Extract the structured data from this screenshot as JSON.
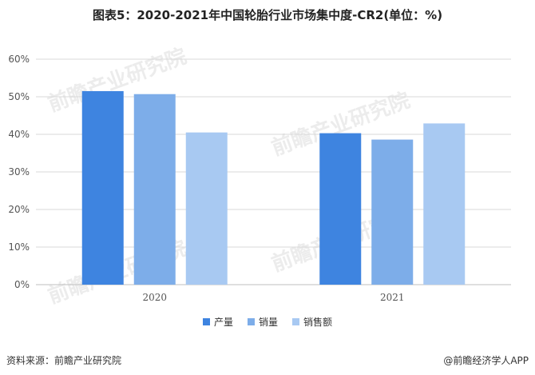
{
  "title": "图表5：2020-2021年中国轮胎行业市场集中度-CR2(单位：%)",
  "footer": {
    "source": "资料来源：前瞻产业研究院",
    "brand": "@前瞻经济学人APP"
  },
  "watermark": "前瞻产业研究院",
  "colors": {
    "series1": "#3e84e0",
    "series2": "#7dade9",
    "series3": "#a8c9f2",
    "axis": "#bfbfbf",
    "grid": "#d9d9d9"
  },
  "chart_data": {
    "type": "bar",
    "categories": [
      "2020",
      "2021"
    ],
    "series": [
      {
        "name": "产量",
        "values": [
          51.5,
          40.3
        ]
      },
      {
        "name": "销量",
        "values": [
          50.7,
          38.6
        ]
      },
      {
        "name": "销售额",
        "values": [
          40.5,
          42.9
        ]
      }
    ],
    "yticks": [
      "0%",
      "10%",
      "20%",
      "30%",
      "40%",
      "50%",
      "60%"
    ],
    "ylim": [
      0,
      60
    ],
    "grid": true,
    "legend": "bottom"
  }
}
